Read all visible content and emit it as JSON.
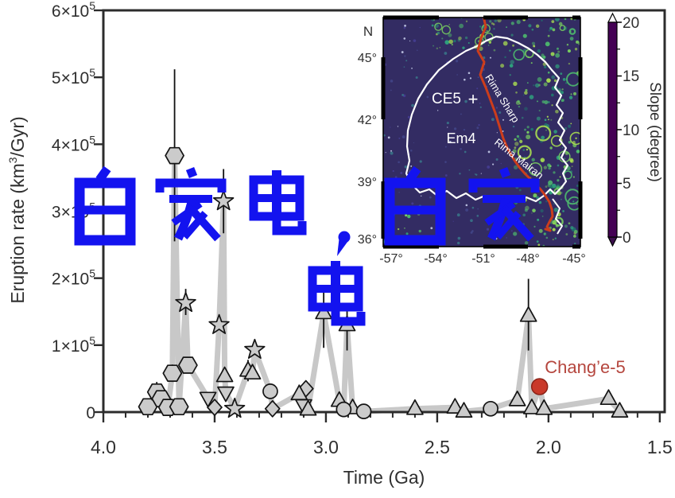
{
  "watermark": {
    "line1": "白家电,白家",
    "line2": "电",
    "color": "#1313ef"
  },
  "axes": {
    "ylabel_pre": "Eruption rate (km",
    "ylabel_sup": "3",
    "ylabel_post": "/Gyr)",
    "xlabel": "Time (Ga)",
    "x_ticks": [
      {
        "v": 4.0,
        "label": "4.0"
      },
      {
        "v": 3.5,
        "label": "3.5"
      },
      {
        "v": 3.0,
        "label": "3.0"
      },
      {
        "v": 2.5,
        "label": "2.5"
      },
      {
        "v": 2.0,
        "label": "2.0"
      },
      {
        "v": 1.5,
        "label": "1.5"
      }
    ],
    "y_ticks": [
      {
        "v": 0,
        "mant": "0",
        "exp": ""
      },
      {
        "v": 100000,
        "mant": "1×10",
        "exp": "5"
      },
      {
        "v": 200000,
        "mant": "2×10",
        "exp": "5"
      },
      {
        "v": 300000,
        "mant": "3×10",
        "exp": "5"
      },
      {
        "v": 400000,
        "mant": "4×10",
        "exp": "5"
      },
      {
        "v": 500000,
        "mant": "5×10",
        "exp": "5"
      },
      {
        "v": 600000,
        "mant": "6×10",
        "exp": "5"
      }
    ]
  },
  "annotation": {
    "change5_label": "Chang’e-5",
    "change5_label_color": "#b5463e",
    "change5_marker_color": "#c9392a"
  },
  "chart_data": {
    "type": "scatter",
    "title": "",
    "xlabel": "Time (Ga)",
    "ylabel": "Eruption rate (km3/Gyr)",
    "xlim": [
      4.0,
      1.478
    ],
    "ylim": [
      0,
      600000
    ],
    "x_axis_reversed": true,
    "grid": false,
    "legend": "none",
    "line_color": "#c8c8c8",
    "marker_fill": "#cbcbcb",
    "point_format": [
      "age_Ga",
      "rate_km3_per_Gyr",
      "err_minus",
      "err_plus"
    ],
    "series": [
      {
        "name": "hexagon-units",
        "marker": "hexagon",
        "points": [
          [
            3.8,
            8000
          ],
          [
            3.76,
            30000,
            15000,
            15000
          ],
          [
            3.74,
            20000
          ],
          [
            3.71,
            7000
          ],
          [
            3.69,
            58000,
            13000,
            13000
          ],
          [
            3.68,
            383000,
            128000,
            129000
          ],
          [
            3.66,
            8000
          ],
          [
            3.62,
            70000
          ]
        ]
      },
      {
        "name": "star-units",
        "marker": "star",
        "points": [
          [
            3.63,
            163000,
            18000,
            21000
          ],
          [
            3.48,
            130000
          ],
          [
            3.46,
            315000,
            48000,
            48000
          ],
          [
            3.41,
            5000
          ],
          [
            3.32,
            93000
          ]
        ]
      },
      {
        "name": "triangle-down-units",
        "marker": "triangle-down",
        "points": [
          [
            3.53,
            21000
          ],
          [
            3.45,
            29000
          ],
          [
            3.1,
            10000
          ]
        ]
      },
      {
        "name": "diamond-units",
        "marker": "diamond",
        "points": [
          [
            3.5,
            7000
          ],
          [
            3.24,
            5000
          ],
          [
            3.09,
            35000
          ]
        ]
      },
      {
        "name": "triangle-up-units",
        "marker": "triangle-up",
        "points": [
          [
            3.455,
            54000
          ],
          [
            3.35,
            62000,
            16000,
            16000
          ],
          [
            3.33,
            58000
          ],
          [
            3.12,
            27000,
            14000,
            14000
          ],
          [
            3.08,
            4000
          ],
          [
            3.01,
            148000,
            52000,
            42000
          ],
          [
            2.94,
            17000
          ],
          [
            2.905,
            130000,
            38000,
            28000
          ],
          [
            2.88,
            6000
          ],
          [
            2.6,
            5000
          ],
          [
            2.42,
            7000
          ],
          [
            2.38,
            1000
          ],
          [
            2.14,
            18000
          ],
          [
            2.09,
            144000,
            52000,
            55000
          ],
          [
            2.075,
            6000
          ],
          [
            2.02,
            5000
          ],
          [
            1.73,
            20000
          ],
          [
            1.68,
            1000
          ]
        ]
      },
      {
        "name": "circle-units",
        "marker": "circle",
        "points": [
          [
            3.25,
            31000
          ],
          [
            2.92,
            4000
          ],
          [
            2.83,
            1000
          ],
          [
            2.26,
            5000
          ]
        ]
      },
      {
        "name": "change5",
        "marker": "circle-red",
        "color": "#c9392a",
        "points": [
          [
            2.04,
            38000
          ]
        ]
      }
    ]
  },
  "inset_map": {
    "north_label": "N",
    "lat_ticks": [
      "45°",
      "42°",
      "39°",
      "36°"
    ],
    "lon_ticks": [
      "-57°",
      "-54°",
      "-51°",
      "-48°",
      "-45°"
    ],
    "site_label": "CE5",
    "site_marker": "+",
    "unit_label": "Em4",
    "rille_label_1": "Rima Sharp",
    "rille_label_2": "Rima Mairan",
    "rille_color": "#cc3d1c",
    "boundary_color": "#ffffff",
    "colorbar": {
      "label": "Slope (degree)",
      "ticks": [
        "0",
        "5",
        "10",
        "15",
        "20"
      ],
      "tick_values": [
        0,
        5,
        10,
        15,
        20
      ],
      "range": [
        0,
        20
      ],
      "colors_bottom_to_top": [
        "#440154",
        "#3b528b",
        "#21918c",
        "#5ec962",
        "#fde725"
      ]
    }
  }
}
